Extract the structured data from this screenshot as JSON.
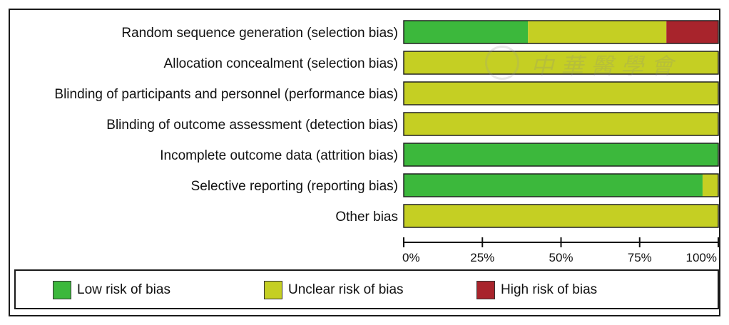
{
  "chart_data": {
    "type": "bar",
    "stacked": true,
    "orientation": "horizontal",
    "categories": [
      "Random sequence generation (selection bias)",
      "Allocation concealment (selection bias)",
      "Blinding of participants and personnel (performance bias)",
      "Blinding of outcome assessment (detection bias)",
      "Incomplete outcome data (attrition bias)",
      "Selective reporting (reporting bias)",
      "Other bias"
    ],
    "series": [
      {
        "name": "Low risk of bias",
        "color": "#3cb83c",
        "values": [
          39.5,
          0,
          0,
          0,
          100,
          95,
          0
        ]
      },
      {
        "name": "Unclear risk of bias",
        "color": "#c5cf23",
        "values": [
          44,
          100,
          100,
          100,
          0,
          5,
          100
        ]
      },
      {
        "name": "High risk of bias",
        "color": "#a8242c",
        "values": [
          16.5,
          0,
          0,
          0,
          0,
          0,
          0
        ]
      }
    ],
    "xlim": [
      0,
      100
    ],
    "x_ticks": [
      "0%",
      "25%",
      "50%",
      "75%",
      "100%"
    ],
    "legend_position": "bottom",
    "grid": false
  },
  "watermark": {
    "text": "中華醫學會"
  }
}
